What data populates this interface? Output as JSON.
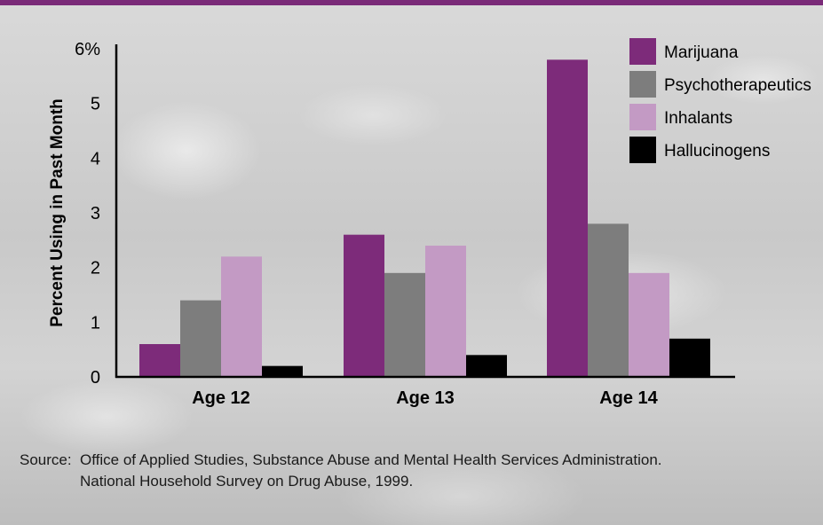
{
  "colors": {
    "marijuana": "#7d2b7a",
    "psychotherapeutics": "#7d7d7d",
    "inhalants": "#c39ac4",
    "hallucinogens": "#000000",
    "top_bar": "#7a2a78",
    "axis": "#000000"
  },
  "chart_data": {
    "type": "bar",
    "categories": [
      "Age 12",
      "Age 13",
      "Age 14"
    ],
    "series": [
      {
        "name": "Marijuana",
        "values": [
          0.6,
          2.6,
          5.8
        ]
      },
      {
        "name": "Psychotherapeutics",
        "values": [
          1.4,
          1.9,
          2.8
        ]
      },
      {
        "name": "Inhalants",
        "values": [
          2.2,
          2.4,
          1.9
        ]
      },
      {
        "name": "Hallucinogens",
        "values": [
          0.2,
          0.4,
          0.7
        ]
      }
    ],
    "ylabel": "Percent Using in Past Month",
    "yticks": [
      "0",
      "1",
      "2",
      "3",
      "4",
      "5",
      "6%"
    ],
    "ylim": [
      0,
      6
    ],
    "legend_position": "top-right",
    "grid": false
  },
  "source": {
    "label": "Source:",
    "line1": "Office of Applied Studies, Substance Abuse and Mental Health Services Administration.",
    "line2": "National Household Survey on Drug Abuse, 1999."
  }
}
